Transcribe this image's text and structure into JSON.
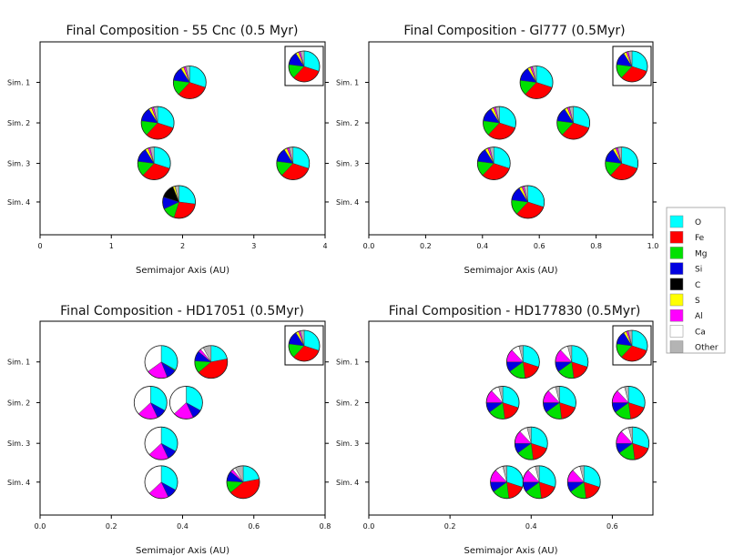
{
  "colors": {
    "O": "#00ffff",
    "Fe": "#ff0000",
    "Mg": "#00e000",
    "Si": "#0000e0",
    "C": "#000000",
    "S": "#ffff00",
    "Al": "#ff00ff",
    "Ca": "#ffffff",
    "Other": "#b4b4b4"
  },
  "legend": {
    "entries": [
      "O",
      "Fe",
      "Mg",
      "Si",
      "C",
      "S",
      "Al",
      "Ca",
      "Other"
    ]
  },
  "chart_data": [
    {
      "type": "pie-scatter",
      "title": "Final Composition - 55 Cnc (0.5 Myr)",
      "xlabel": "Semimajor Axis (AU)",
      "ylabel": "",
      "xlim": [
        0,
        4
      ],
      "xticks": [
        0,
        1,
        2,
        3,
        4
      ],
      "xtick_labels": [
        "0",
        "1",
        "2",
        "3",
        "4"
      ],
      "rows": [
        "Sim. 1",
        "Sim. 2",
        "Sim. 3",
        "Sim. 4"
      ],
      "inset_reference": {
        "O": 30,
        "Fe": 32,
        "Mg": 15,
        "Si": 14,
        "S": 3,
        "Al": 2,
        "Other": 4
      },
      "planets": [
        {
          "sim": 1,
          "a": 2.1,
          "composition": {
            "O": 30,
            "Fe": 32,
            "Mg": 15,
            "Si": 14,
            "S": 3,
            "Al": 2,
            "Other": 4
          }
        },
        {
          "sim": 2,
          "a": 1.65,
          "composition": {
            "O": 30,
            "Fe": 32,
            "Mg": 15,
            "Si": 14,
            "S": 3,
            "Al": 2,
            "Other": 4
          }
        },
        {
          "sim": 3,
          "a": 1.6,
          "composition": {
            "O": 30,
            "Fe": 32,
            "Mg": 15,
            "Si": 14,
            "S": 3,
            "Al": 2,
            "Other": 4
          }
        },
        {
          "sim": 3,
          "a": 3.55,
          "composition": {
            "O": 30,
            "Fe": 32,
            "Mg": 15,
            "Si": 14,
            "S": 3,
            "Al": 2,
            "Other": 4
          }
        },
        {
          "sim": 4,
          "a": 1.95,
          "composition": {
            "O": 27,
            "Fe": 28,
            "Mg": 13,
            "Si": 12,
            "C": 14,
            "S": 2,
            "Other": 4
          }
        }
      ]
    },
    {
      "type": "pie-scatter",
      "title": "Final Composition - Gl777 (0.5Myr)",
      "xlabel": "Semimajor Axis (AU)",
      "ylabel": "",
      "xlim": [
        0.0,
        1.0
      ],
      "xticks": [
        0.0,
        0.2,
        0.4,
        0.6,
        0.8,
        1.0
      ],
      "xtick_labels": [
        "0.0",
        "0.2",
        "0.4",
        "0.6",
        "0.8",
        "1.0"
      ],
      "rows": [
        "Sim. 1",
        "Sim. 2",
        "Sim. 3",
        "Sim. 4"
      ],
      "inset_reference": {
        "O": 30,
        "Fe": 32,
        "Mg": 15,
        "Si": 14,
        "S": 3,
        "Al": 2,
        "Other": 4
      },
      "planets": [
        {
          "sim": 1,
          "a": 0.59,
          "composition": {
            "O": 30,
            "Fe": 32,
            "Mg": 15,
            "Si": 14,
            "S": 3,
            "Al": 2,
            "Other": 4
          }
        },
        {
          "sim": 2,
          "a": 0.46,
          "composition": {
            "O": 30,
            "Fe": 32,
            "Mg": 15,
            "Si": 14,
            "S": 3,
            "Al": 2,
            "Other": 4
          }
        },
        {
          "sim": 2,
          "a": 0.72,
          "composition": {
            "O": 30,
            "Fe": 32,
            "Mg": 15,
            "Si": 14,
            "S": 3,
            "Al": 2,
            "Other": 4
          }
        },
        {
          "sim": 3,
          "a": 0.44,
          "composition": {
            "O": 30,
            "Fe": 32,
            "Mg": 15,
            "Si": 14,
            "S": 3,
            "Al": 2,
            "Other": 4
          }
        },
        {
          "sim": 3,
          "a": 0.89,
          "composition": {
            "O": 30,
            "Fe": 32,
            "Mg": 15,
            "Si": 14,
            "S": 3,
            "Al": 2,
            "Other": 4
          }
        },
        {
          "sim": 4,
          "a": 0.56,
          "composition": {
            "O": 30,
            "Fe": 32,
            "Mg": 15,
            "Si": 14,
            "S": 3,
            "Al": 2,
            "Other": 4
          }
        }
      ]
    },
    {
      "type": "pie-scatter",
      "title": "Final Composition - HD17051 (0.5Myr)",
      "xlabel": "Semimajor Axis (AU)",
      "ylabel": "",
      "xlim": [
        0.0,
        0.8
      ],
      "xticks": [
        0.0,
        0.2,
        0.4,
        0.6,
        0.8
      ],
      "xtick_labels": [
        "0.0",
        "0.2",
        "0.4",
        "0.6",
        "0.8"
      ],
      "rows": [
        "Sim. 1",
        "Sim. 2",
        "Sim. 3",
        "Sim. 4"
      ],
      "inset_reference": {
        "O": 30,
        "Fe": 32,
        "Mg": 15,
        "Si": 14,
        "S": 3,
        "Al": 2,
        "Other": 4
      },
      "planets": [
        {
          "sim": 1,
          "a": 0.34,
          "composition": {
            "O": 33,
            "Fe": 0,
            "Mg": 1,
            "Si": 10,
            "Al": 21,
            "Ca": 35
          }
        },
        {
          "sim": 1,
          "a": 0.48,
          "composition": {
            "O": 22,
            "Fe": 42,
            "Mg": 12,
            "Si": 10,
            "Al": 3,
            "Ca": 3,
            "Other": 8
          }
        },
        {
          "sim": 2,
          "a": 0.31,
          "composition": {
            "O": 33,
            "Si": 10,
            "Al": 20,
            "Ca": 37
          }
        },
        {
          "sim": 2,
          "a": 0.41,
          "composition": {
            "O": 33,
            "Si": 10,
            "Al": 20,
            "Ca": 37
          }
        },
        {
          "sim": 3,
          "a": 0.34,
          "composition": {
            "O": 33,
            "Si": 10,
            "Al": 20,
            "Ca": 37
          }
        },
        {
          "sim": 4,
          "a": 0.34,
          "composition": {
            "O": 33,
            "Si": 10,
            "Al": 20,
            "Ca": 37
          }
        },
        {
          "sim": 4,
          "a": 0.57,
          "composition": {
            "O": 22,
            "Fe": 42,
            "Mg": 12,
            "Si": 10,
            "Al": 3,
            "Ca": 3,
            "Other": 8
          }
        }
      ]
    },
    {
      "type": "pie-scatter",
      "title": "Final Composition - HD177830 (0.5Myr)",
      "xlabel": "Semimajor Axis (AU)",
      "ylabel": "",
      "xlim": [
        0.0,
        0.7
      ],
      "xticks": [
        0.0,
        0.2,
        0.4,
        0.6
      ],
      "xtick_labels": [
        "0.0",
        "0.2",
        "0.4",
        "0.6"
      ],
      "rows": [
        "Sim. 1",
        "Sim. 2",
        "Sim. 3",
        "Sim. 4"
      ],
      "inset_reference": {
        "O": 30,
        "Fe": 32,
        "Mg": 15,
        "Si": 14,
        "S": 3,
        "Al": 2,
        "Other": 4
      },
      "planets": [
        {
          "sim": 1,
          "a": 0.38,
          "composition": {
            "O": 30,
            "Fe": 18,
            "Mg": 17,
            "Si": 10,
            "Al": 13,
            "Ca": 8,
            "Other": 4
          }
        },
        {
          "sim": 1,
          "a": 0.5,
          "composition": {
            "O": 30,
            "Fe": 18,
            "Mg": 17,
            "Si": 10,
            "Al": 13,
            "Ca": 8,
            "Other": 4
          }
        },
        {
          "sim": 2,
          "a": 0.33,
          "composition": {
            "O": 30,
            "Fe": 18,
            "Mg": 17,
            "Si": 10,
            "Al": 13,
            "Ca": 8,
            "Other": 4
          }
        },
        {
          "sim": 2,
          "a": 0.47,
          "composition": {
            "O": 30,
            "Fe": 18,
            "Mg": 17,
            "Si": 10,
            "Al": 13,
            "Ca": 8,
            "Other": 4
          }
        },
        {
          "sim": 2,
          "a": 0.64,
          "composition": {
            "O": 30,
            "Fe": 18,
            "Mg": 17,
            "Si": 10,
            "Al": 13,
            "Ca": 8,
            "Other": 4
          }
        },
        {
          "sim": 3,
          "a": 0.4,
          "composition": {
            "O": 30,
            "Fe": 18,
            "Mg": 17,
            "Si": 10,
            "Al": 13,
            "Ca": 8,
            "Other": 4
          }
        },
        {
          "sim": 3,
          "a": 0.65,
          "composition": {
            "O": 30,
            "Fe": 18,
            "Mg": 17,
            "Si": 10,
            "Al": 13,
            "Ca": 8,
            "Other": 4
          }
        },
        {
          "sim": 4,
          "a": 0.34,
          "composition": {
            "O": 30,
            "Fe": 18,
            "Mg": 17,
            "Si": 10,
            "Al": 13,
            "Ca": 8,
            "Other": 4
          }
        },
        {
          "sim": 4,
          "a": 0.42,
          "composition": {
            "O": 30,
            "Fe": 18,
            "Mg": 17,
            "Si": 10,
            "Al": 13,
            "Ca": 8,
            "Other": 4
          }
        },
        {
          "sim": 4,
          "a": 0.53,
          "composition": {
            "O": 30,
            "Fe": 18,
            "Mg": 17,
            "Si": 10,
            "Al": 13,
            "Ca": 8,
            "Other": 4
          }
        }
      ]
    }
  ]
}
